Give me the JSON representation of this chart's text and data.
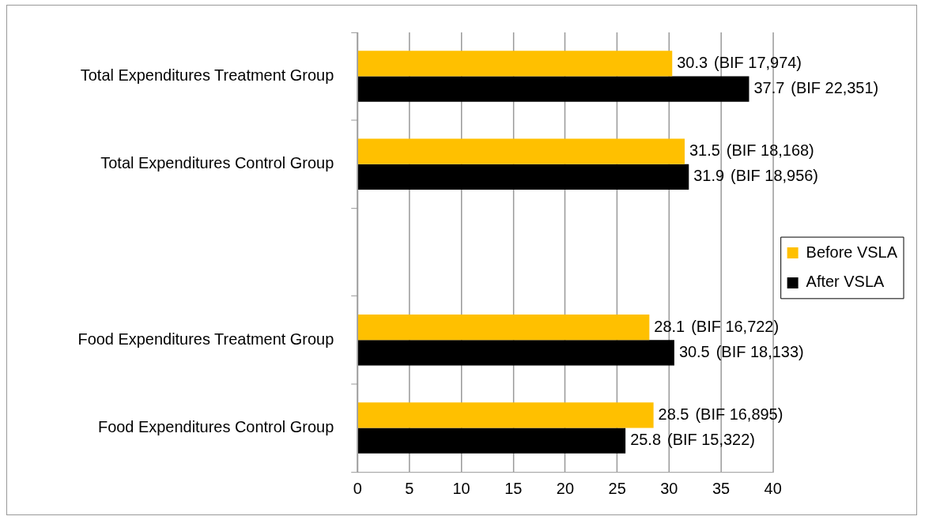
{
  "chart_data": {
    "type": "bar",
    "orientation": "horizontal",
    "categories": [
      "Total Expenditures Treatment Group",
      "Total Expenditures Control Group",
      null,
      "Food Expenditures Treatment Group",
      "Food Expenditures Control Group"
    ],
    "series": [
      {
        "name": "Before VSLA",
        "color": "#ffc000",
        "values": [
          30.3,
          31.5,
          null,
          28.1,
          28.5
        ]
      },
      {
        "name": "After VSLA",
        "color": "#000000",
        "values": [
          37.7,
          31.9,
          null,
          30.5,
          25.8
        ]
      }
    ],
    "xlim": [
      0,
      40
    ],
    "xticks": [
      0,
      5,
      10,
      15,
      20,
      25,
      30,
      35,
      40
    ],
    "grid": "x",
    "legend": "right",
    "data_labels": true,
    "annotations": [
      {
        "text": "(BIF 17,974)",
        "x": 30.3,
        "y": "Total Expenditures Treatment Group"
      },
      {
        "text": "(BIF 22,351)",
        "x": 37.7,
        "y": "Total Expenditures Treatment Group"
      },
      {
        "text": "(BIF 18,168)",
        "x": 31.5,
        "y": "Total Expenditures Control Group"
      },
      {
        "text": "(BIF 18,956)",
        "x": 31.9,
        "y": "Total Expenditures Control Group"
      },
      {
        "text": "(BIF 16,722)",
        "x": 28.1,
        "y": "Food Expenditures Treatment Group"
      },
      {
        "text": "(BIF 18,133)",
        "x": 30.5,
        "y": "Food Expenditures Treatment Group"
      },
      {
        "text": "(BIF 16,895)",
        "x": 28.5,
        "y": "Food Expenditures Control Group"
      },
      {
        "text": "(BIF 15,322)",
        "x": 25.8,
        "y": "Food Expenditures Control Group"
      }
    ]
  }
}
